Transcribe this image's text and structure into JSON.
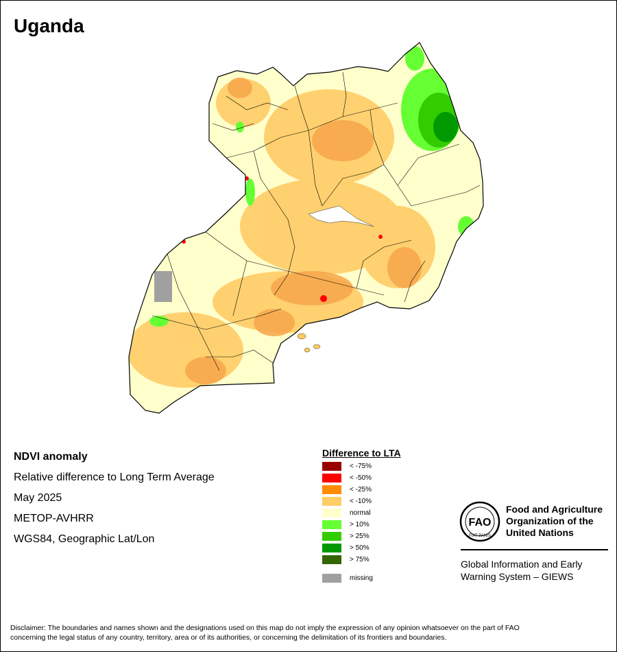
{
  "map_title": "Uganda",
  "info": {
    "product": "NDVI anomaly",
    "description": "Relative difference to Long Term Average",
    "period": "May 2025",
    "sensor": "METOP-AVHRR",
    "projection": "WGS84, Geographic Lat/Lon"
  },
  "legend": {
    "title": "Difference to LTA",
    "items": [
      {
        "label": "< -75%",
        "color": "#990000"
      },
      {
        "label": "< -50%",
        "color": "#ff0000"
      },
      {
        "label": "< -25%",
        "color": "#ff8c00"
      },
      {
        "label": "< -10%",
        "color": "#ffcc66"
      },
      {
        "label": "normal",
        "color": "#ffffcc"
      },
      {
        "label": "> 10%",
        "color": "#66ff33"
      },
      {
        "label": "> 25%",
        "color": "#33cc00"
      },
      {
        "label": "> 50%",
        "color": "#009900"
      },
      {
        "label": "> 75%",
        "color": "#336600"
      },
      {
        "label": "missing",
        "color": "#a0a0a0"
      }
    ]
  },
  "organization": {
    "emblem_text": "FAO",
    "emblem_motto": "FIAT PANIS",
    "name_line1": "Food and Agriculture",
    "name_line2": "Organization of the",
    "name_line3": "United Nations",
    "system_line1": "Global Information and Early",
    "system_line2": "Warning System – GIEWS"
  },
  "disclaimer_line1": "Disclaimer: The boundaries and names shown and the designations used on this map do not imply the expression of any opinion whatsoever on the part of FAO",
  "disclaimer_line2": "concerning the legal status of any country, territory, area or of its authorities, or concerning the delimitation of its frontiers and boundaries."
}
